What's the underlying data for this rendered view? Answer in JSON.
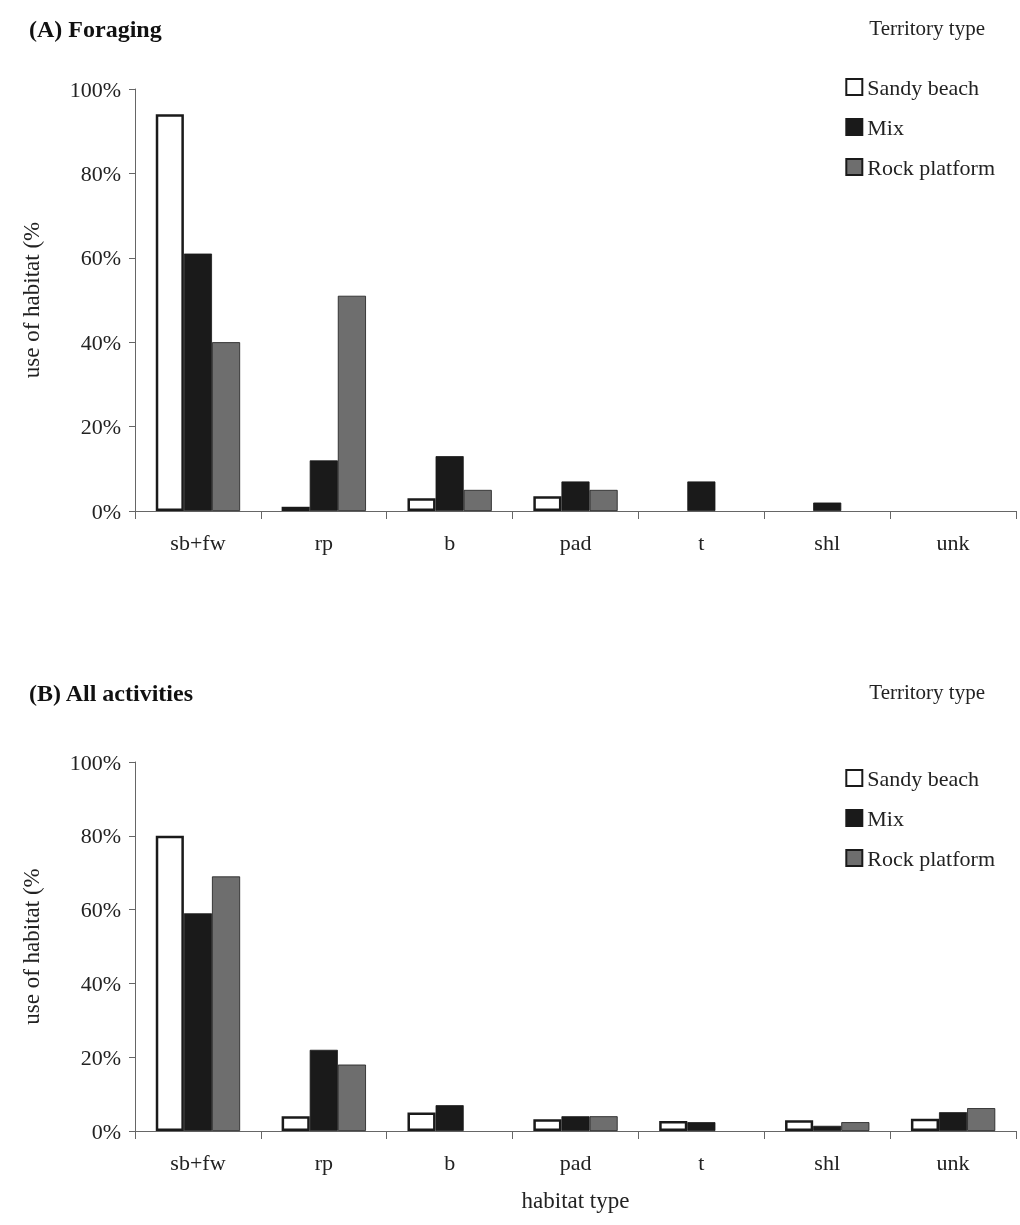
{
  "chart_data": [
    {
      "type": "bar",
      "title": "(A) Foraging",
      "ylabel": "use of habitat (%",
      "legend_title": "Territory type",
      "legend": "top right",
      "grid": false,
      "categories": [
        "sb+fw",
        "rp",
        "b",
        "pad",
        "t",
        "shl",
        "unk"
      ],
      "ylim": [
        0,
        100
      ],
      "yticks": [
        {
          "value": 0,
          "label": "0%"
        },
        {
          "value": 20,
          "label": "20%"
        },
        {
          "value": 40,
          "label": "40%"
        },
        {
          "value": 60,
          "label": "60%"
        },
        {
          "value": 80,
          "label": "80%"
        },
        {
          "value": 100,
          "label": "100%"
        }
      ],
      "series": [
        {
          "name": "Sandy beach",
          "color": "#ffffff",
          "values": [
            94,
            1,
            3,
            3.5,
            null,
            null,
            null
          ]
        },
        {
          "name": "Mix",
          "color": "#1a1a1a",
          "values": [
            61,
            12,
            13,
            7,
            7,
            2,
            null
          ]
        },
        {
          "name": "Rock platform",
          "color": "#6e6e6e",
          "values": [
            40,
            51,
            5,
            5,
            null,
            null,
            null
          ]
        }
      ]
    },
    {
      "type": "bar",
      "title": "(B) All activities",
      "xlabel": "habitat type",
      "ylabel": "use of habitat (%",
      "legend_title": "Territory type",
      "legend": "top right",
      "grid": false,
      "categories": [
        "sb+fw",
        "rp",
        "b",
        "pad",
        "t",
        "shl",
        "unk"
      ],
      "ylim": [
        0,
        100
      ],
      "yticks": [
        {
          "value": 0,
          "label": "0%"
        },
        {
          "value": 20,
          "label": "20%"
        },
        {
          "value": 40,
          "label": "40%"
        },
        {
          "value": 60,
          "label": "60%"
        },
        {
          "value": 80,
          "label": "80%"
        },
        {
          "value": 100,
          "label": "100%"
        }
      ],
      "series": [
        {
          "name": "Sandy beach",
          "color": "#ffffff",
          "values": [
            80,
            4,
            5,
            3.2,
            2.7,
            2.9,
            3.3
          ]
        },
        {
          "name": "Mix",
          "color": "#1a1a1a",
          "values": [
            59,
            22,
            7,
            4,
            2.4,
            1.4,
            5.1
          ]
        },
        {
          "name": "Rock platform",
          "color": "#6e6e6e",
          "values": [
            69,
            18,
            null,
            4,
            null,
            2.4,
            6.2
          ]
        }
      ]
    }
  ]
}
